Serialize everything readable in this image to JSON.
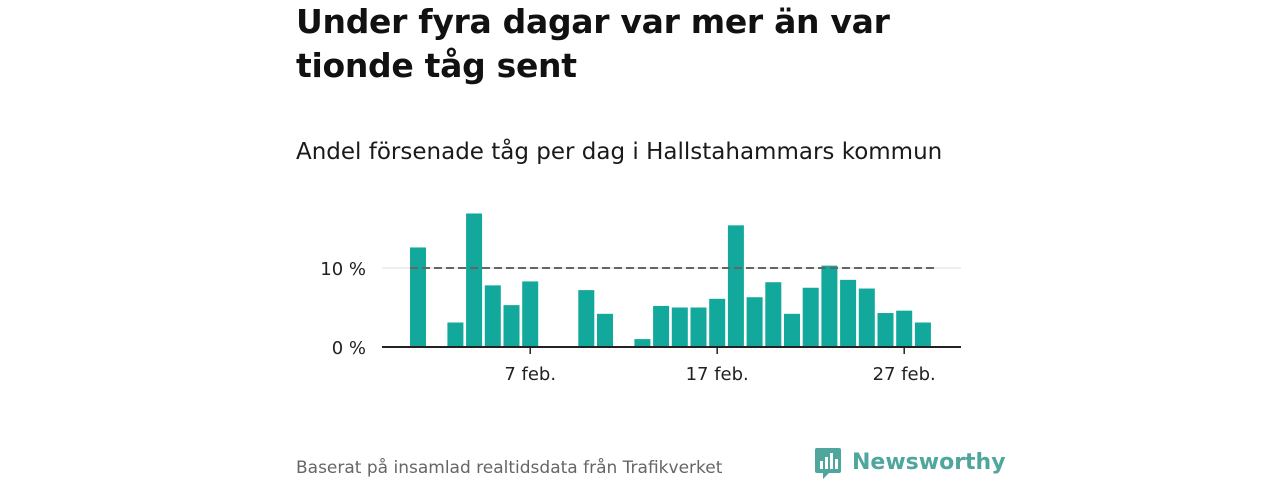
{
  "title": "Under fyra dagar var mer än var tionde tåg sent",
  "subtitle": "Andel försenade tåg per dag i Hallstahammars kommun",
  "source": "Baserat på insamlad realtidsdata från Trafikverket",
  "brand": {
    "name": "Newsworthy",
    "icon": "newsworthy-logo-icon",
    "color": "#4fa69c"
  },
  "colors": {
    "bar": "#12a89b",
    "reference_line": "#666666",
    "grid": "#dddddd",
    "axis": "#222222"
  },
  "chart_data": {
    "type": "bar",
    "x_type": "date",
    "categories": [
      "1 feb.",
      "2 feb.",
      "3 feb.",
      "4 feb.",
      "5 feb.",
      "6 feb.",
      "7 feb.",
      "8 feb.",
      "9 feb.",
      "10 feb.",
      "11 feb.",
      "12 feb.",
      "13 feb.",
      "14 feb.",
      "15 feb.",
      "16 feb.",
      "17 feb.",
      "18 feb.",
      "19 feb.",
      "20 feb.",
      "21 feb.",
      "22 feb.",
      "23 feb.",
      "24 feb.",
      "25 feb.",
      "26 feb.",
      "27 feb.",
      "28 feb."
    ],
    "values": [
      12.6,
      null,
      3.1,
      16.9,
      7.8,
      5.3,
      8.3,
      null,
      null,
      7.2,
      4.2,
      null,
      1.0,
      5.2,
      5.0,
      5.0,
      6.1,
      15.4,
      6.3,
      8.2,
      4.2,
      7.5,
      10.3,
      8.5,
      7.4,
      4.3,
      4.6,
      3.1
    ],
    "unit": "%",
    "reference_line": 10,
    "y_ticks": [
      0,
      10
    ],
    "y_tick_labels": [
      "0 %",
      "10 %"
    ],
    "x_tick_labels": [
      {
        "category": "7 feb.",
        "label": "7 feb."
      },
      {
        "category": "17 feb.",
        "label": "17 feb."
      },
      {
        "category": "27 feb.",
        "label": "27 feb."
      }
    ],
    "ylim": [
      0,
      17
    ],
    "grid": "horizontal",
    "legend": "none",
    "xlabel": "",
    "ylabel": ""
  }
}
